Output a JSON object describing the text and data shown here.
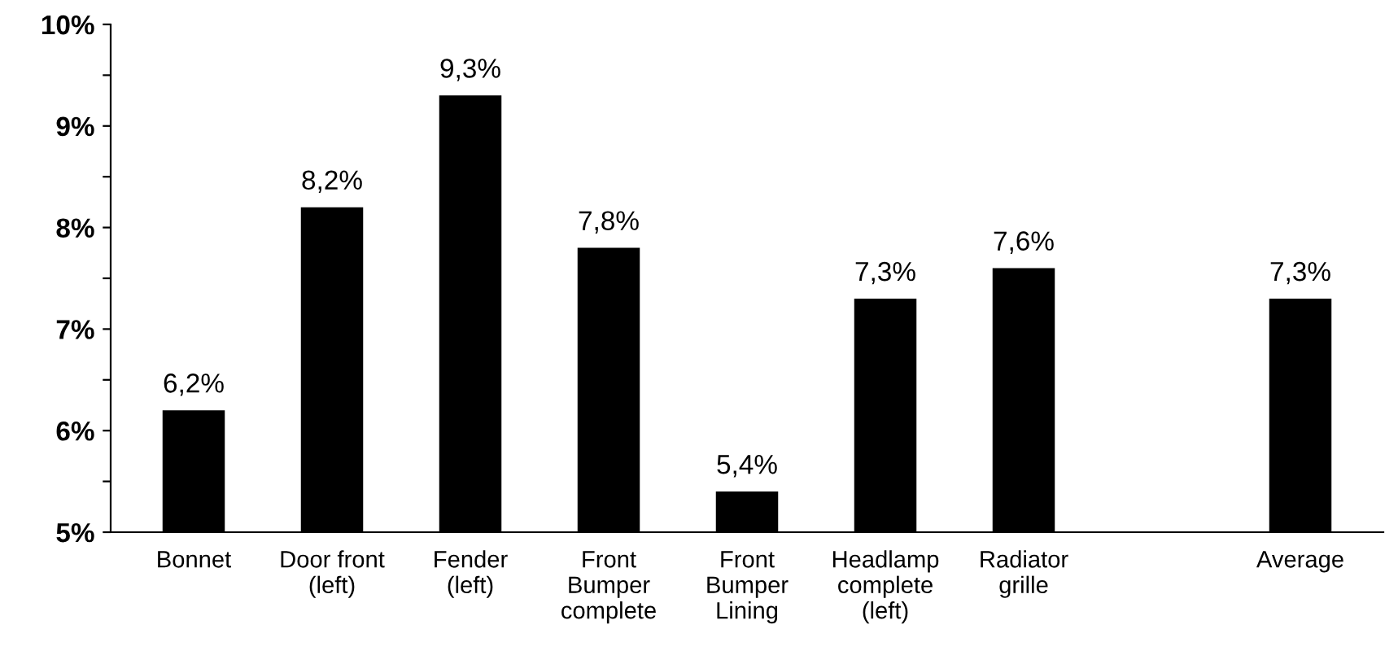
{
  "chart_data": {
    "type": "bar",
    "categories": [
      "Bonnet",
      "Door front\n(left)",
      "Fender\n(left)",
      "Front\nBumper\ncomplete",
      "Front\nBumper\nLining",
      "Headlamp\ncomplete\n(left)",
      "Radiator\ngrille",
      null,
      "Average"
    ],
    "values": [
      6.2,
      8.2,
      9.3,
      7.8,
      5.4,
      7.3,
      7.6,
      null,
      7.3
    ],
    "value_labels": [
      "6,2%",
      "8,2%",
      "9,3%",
      "7,8%",
      "5,4%",
      "7,3%",
      "7,6%",
      null,
      "7,3%"
    ],
    "color": "#000000",
    "ylim": [
      5,
      10
    ],
    "yticks": [
      {
        "value": 5,
        "label": "5%"
      },
      {
        "value": 5.5,
        "label": null
      },
      {
        "value": 6,
        "label": "6%"
      },
      {
        "value": 6.5,
        "label": null
      },
      {
        "value": 7,
        "label": "7%"
      },
      {
        "value": 7.5,
        "label": null
      },
      {
        "value": 8,
        "label": "8%"
      },
      {
        "value": 8.5,
        "label": null
      },
      {
        "value": 9,
        "label": "9%"
      },
      {
        "value": 9.5,
        "label": null
      },
      {
        "value": 10,
        "label": "10%"
      }
    ],
    "grid": false
  }
}
